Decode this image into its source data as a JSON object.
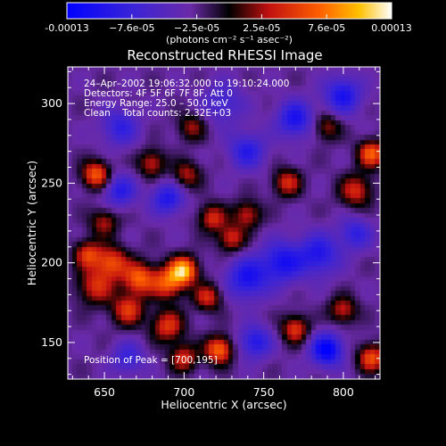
{
  "chart_data": {
    "type": "heatmap",
    "title": "Reconstructed RHESSI Image",
    "xlabel": "Heliocentric X (arcsec)",
    "ylabel": "Heliocentric Y (arcsec)",
    "xlim": [
      627,
      823
    ],
    "ylim": [
      127,
      323
    ],
    "x_ticks": [
      650,
      700,
      750,
      800
    ],
    "y_ticks": [
      150,
      200,
      250,
      300
    ],
    "colorbar": {
      "min": -0.00013,
      "max": 0.00013,
      "tick_labels": [
        "-0.00013",
        "−7.6e-05",
        "−2.5e-05",
        "2.5e-05",
        "7.6e-05",
        "0.00013"
      ],
      "unit_label": "(photons cm⁻² s⁻¹ asec⁻²)"
    },
    "annotations": {
      "line1": "24–Apr–2002 19:06:32.000 to 19:10:24.000",
      "line2": "Detectors: 4F 5F 6F 7F 8F, Att 0",
      "line3": "Energy Range: 25.0 – 50.0 keV",
      "line4": "Clean    Total counts: 2.32E+03",
      "peak": "Position of Peak = [700,195]"
    },
    "peak": {
      "x": 700,
      "y": 195
    },
    "sources": [
      {
        "x": 700,
        "y": 195,
        "amp": 1.0,
        "s": 6
      },
      {
        "x": 690,
        "y": 187,
        "amp": 0.7,
        "s": 7
      },
      {
        "x": 672,
        "y": 190,
        "amp": 0.75,
        "s": 7
      },
      {
        "x": 655,
        "y": 200,
        "amp": 0.65,
        "s": 7
      },
      {
        "x": 640,
        "y": 205,
        "amp": 0.6,
        "s": 6
      },
      {
        "x": 645,
        "y": 185,
        "amp": 0.55,
        "s": 8
      },
      {
        "x": 665,
        "y": 170,
        "amp": 0.6,
        "s": 7
      },
      {
        "x": 690,
        "y": 160,
        "amp": 0.6,
        "s": 7
      },
      {
        "x": 700,
        "y": 140,
        "amp": 0.55,
        "s": 6
      },
      {
        "x": 722,
        "y": 145,
        "amp": 0.8,
        "s": 6
      },
      {
        "x": 715,
        "y": 178,
        "amp": 0.55,
        "s": 6
      },
      {
        "x": 730,
        "y": 215,
        "amp": 0.55,
        "s": 6
      },
      {
        "x": 718,
        "y": 228,
        "amp": 0.55,
        "s": 6
      },
      {
        "x": 740,
        "y": 230,
        "amp": 0.5,
        "s": 6
      },
      {
        "x": 645,
        "y": 255,
        "amp": 0.75,
        "s": 6
      },
      {
        "x": 680,
        "y": 262,
        "amp": 0.5,
        "s": 6
      },
      {
        "x": 702,
        "y": 255,
        "amp": 0.45,
        "s": 6
      },
      {
        "x": 705,
        "y": 285,
        "amp": 0.4,
        "s": 6
      },
      {
        "x": 765,
        "y": 250,
        "amp": 0.55,
        "s": 6
      },
      {
        "x": 770,
        "y": 158,
        "amp": 0.6,
        "s": 6
      },
      {
        "x": 800,
        "y": 170,
        "amp": 0.5,
        "s": 6
      },
      {
        "x": 808,
        "y": 245,
        "amp": 0.55,
        "s": 7
      },
      {
        "x": 818,
        "y": 268,
        "amp": 0.75,
        "s": 6
      },
      {
        "x": 818,
        "y": 140,
        "amp": 0.7,
        "s": 6
      },
      {
        "x": 790,
        "y": 285,
        "amp": 0.4,
        "s": 6
      },
      {
        "x": 650,
        "y": 225,
        "amp": 0.45,
        "s": 6
      },
      {
        "x": 740,
        "y": 190,
        "amp": -0.6,
        "s": 9
      },
      {
        "x": 762,
        "y": 200,
        "amp": -0.6,
        "s": 9
      },
      {
        "x": 785,
        "y": 205,
        "amp": -0.55,
        "s": 9
      },
      {
        "x": 790,
        "y": 145,
        "amp": -0.8,
        "s": 7
      },
      {
        "x": 745,
        "y": 150,
        "amp": -0.55,
        "s": 7
      },
      {
        "x": 770,
        "y": 290,
        "amp": -0.6,
        "s": 8
      },
      {
        "x": 740,
        "y": 270,
        "amp": -0.5,
        "s": 8
      },
      {
        "x": 800,
        "y": 305,
        "amp": -0.6,
        "s": 8
      },
      {
        "x": 690,
        "y": 240,
        "amp": -0.55,
        "s": 7
      },
      {
        "x": 660,
        "y": 245,
        "amp": -0.5,
        "s": 7
      },
      {
        "x": 660,
        "y": 285,
        "amp": -0.45,
        "s": 8
      },
      {
        "x": 725,
        "y": 300,
        "amp": -0.35,
        "s": 9
      },
      {
        "x": 665,
        "y": 140,
        "amp": -0.4,
        "s": 7
      },
      {
        "x": 808,
        "y": 218,
        "amp": -0.45,
        "s": 7
      }
    ]
  }
}
